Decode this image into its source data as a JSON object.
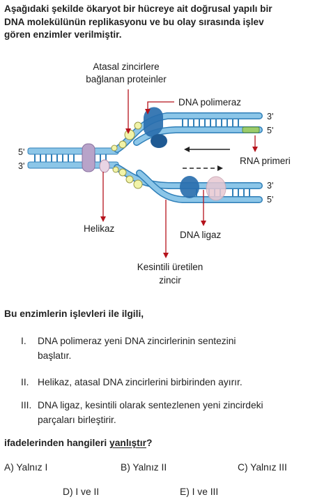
{
  "intro_lines": [
    "Aşağıdaki şekilde ökaryot bir hücreye ait doğrusal yapılı bir",
    "DNA molekülünün replikasyonu ve bu olay sırasında işlev",
    "gören enzimler verilmiştir."
  ],
  "diagram": {
    "labels": {
      "ssb_line1": "Atasal zincirlere",
      "ssb_line2": "bağlanan proteinler",
      "dna_polimeraz": "DNA polimeraz",
      "rna_primeri": "RNA primeri",
      "helikaz": "Helikaz",
      "dna_ligaz": "DNA ligaz",
      "kesintili_line1": "Kesintili üretilen",
      "kesintili_line2": "zincir"
    },
    "strand_ends": {
      "left_top": "5'",
      "left_bottom": "3'",
      "upper_top": "3'",
      "upper_bottom": "5'",
      "lower_top": "3'",
      "lower_bottom": "5'"
    },
    "colors": {
      "strand_fill": "#8cc6e8",
      "strand_edge": "#2f7fb8",
      "polymerase": "#2a6fae",
      "helicase": "#b8a3c9",
      "ligase": "#e8c8d2",
      "ssb": "#f1f3a8",
      "primer": "#9ccc6a",
      "arrow_red": "#b5121b"
    }
  },
  "question": {
    "stem": "Bu enzimlerin işlevleri ile ilgili,",
    "statements": [
      {
        "num": "I.",
        "lines": [
          "DNA polimeraz yeni DNA zincirlerinin sentezini",
          "başlatır."
        ]
      },
      {
        "num": "II.",
        "lines": [
          "Helikaz, atasal DNA zincirlerini birbirinden ayırır."
        ]
      },
      {
        "num": "III.",
        "lines": [
          "DNA ligaz, kesintili olarak sentezlenen yeni zincirdeki",
          "parçaları birleştirir."
        ]
      }
    ],
    "ask_prefix": "ifadelerinden hangileri ",
    "ask_emph": "yanlıştır",
    "ask_suffix": "?",
    "options": [
      {
        "label": "A) Yalnız I"
      },
      {
        "label": "B) Yalnız II"
      },
      {
        "label": "C) Yalnız III"
      },
      {
        "label": "D) I ve II"
      },
      {
        "label": "E) I ve III"
      }
    ]
  }
}
